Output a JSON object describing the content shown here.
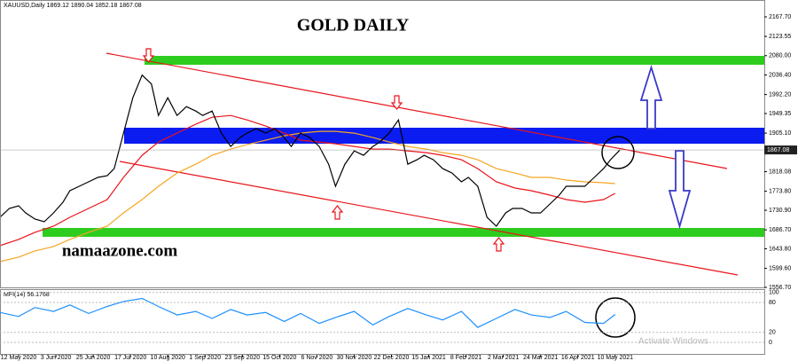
{
  "chart_data": {
    "type": "line",
    "header": "XAUUSD,Daily  1869.12 1890.04 1852.18 1867.08",
    "title": "GOLD DAILY",
    "watermark": "namaazone.com",
    "overlay": "Activate Windows",
    "last_price": 1867.08,
    "xlim": [
      0,
      328
    ],
    "ylim": [
      1556.7,
      2181.7
    ],
    "xticks": [
      {
        "value": 8,
        "label": "12 May 2020"
      },
      {
        "value": 24,
        "label": "3 Jun 2020"
      },
      {
        "value": 40,
        "label": "25 Jun 2020"
      },
      {
        "value": 56,
        "label": "17 Jul 2020"
      },
      {
        "value": 72,
        "label": "10 Aug 2020"
      },
      {
        "value": 88,
        "label": "1 Sep 2020"
      },
      {
        "value": 104,
        "label": "23 Sep 2020"
      },
      {
        "value": 120,
        "label": "15 Oct 2020"
      },
      {
        "value": 136,
        "label": "6 Nov 2020"
      },
      {
        "value": 152,
        "label": "30 Nov 2020"
      },
      {
        "value": 168,
        "label": "22 Dec 2020"
      },
      {
        "value": 184,
        "label": "15 Jan 2021"
      },
      {
        "value": 200,
        "label": "8 Feb 2021"
      },
      {
        "value": 216,
        "label": "2 Mar 2021"
      },
      {
        "value": 232,
        "label": "24 Mar 2021"
      },
      {
        "value": 248,
        "label": "16 Apr 2021"
      },
      {
        "value": 264,
        "label": "10 May 2021"
      }
    ],
    "yticks": [
      {
        "value": 2167.7,
        "label": "2167.70"
      },
      2123.55,
      {
        "value": 2080,
        "label": "2080.00"
      },
      {
        "value": 2036.4,
        "label": "2036.40"
      },
      {
        "value": 1992.2,
        "label": "1992.20"
      },
      1949.35,
      {
        "value": 1905.1,
        "label": "1905.10"
      },
      1818.08,
      {
        "value": 1773.8,
        "label": "1773.80"
      },
      {
        "value": 1730.9,
        "label": "1730.90"
      },
      {
        "value": 1686.7,
        "label": "1686.70"
      },
      {
        "value": 1643.8,
        "label": "1643.80"
      },
      {
        "value": 1599.6,
        "label": "1599.60"
      },
      {
        "value": 1556.7,
        "label": "1556.70"
      }
    ],
    "series": [
      {
        "color": "#000000",
        "x": [
          0,
          4,
          8,
          11,
          15,
          19,
          23,
          27,
          30,
          34,
          38,
          42,
          46,
          49,
          53,
          57,
          61,
          65,
          68,
          72,
          76,
          80,
          84,
          87,
          91,
          95,
          99,
          103,
          106,
          110,
          114,
          118,
          122,
          125,
          129,
          133,
          137,
          141,
          144,
          148,
          152,
          156,
          160,
          163,
          167,
          171,
          175,
          179,
          182,
          186,
          190,
          194,
          198,
          201,
          205,
          209,
          213,
          217,
          220,
          224,
          228,
          232,
          236,
          240,
          243,
          247,
          251,
          255,
          259,
          262,
          266
        ],
        "values": [
          1715,
          1735,
          1741,
          1725,
          1711,
          1705,
          1725,
          1749,
          1775,
          1785,
          1795,
          1805,
          1809,
          1825,
          1905,
          1985,
          2036,
          2016,
          1945,
          1985,
          1945,
          1965,
          1955,
          1945,
          1955,
          1905,
          1875,
          1895,
          1905,
          1915,
          1905,
          1915,
          1895,
          1875,
          1905,
          1895,
          1875,
          1835,
          1785,
          1835,
          1865,
          1855,
          1875,
          1885,
          1905,
          1935,
          1835,
          1845,
          1855,
          1845,
          1825,
          1815,
          1795,
          1805,
          1785,
          1715,
          1695,
          1725,
          1735,
          1735,
          1725,
          1725,
          1745,
          1765,
          1785,
          1785,
          1785,
          1805,
          1825,
          1845,
          1867
        ]
      },
      {
        "color": "#e8141c",
        "x": [
          0,
          8,
          15,
          23,
          30,
          38,
          46,
          53,
          61,
          68,
          76,
          84,
          91,
          99,
          106,
          114,
          122,
          129,
          137,
          144,
          152,
          160,
          167,
          175,
          183,
          190,
          198,
          205,
          213,
          221,
          228,
          236,
          243,
          251,
          259,
          264
        ],
        "values": [
          1651,
          1665,
          1681,
          1695,
          1715,
          1735,
          1755,
          1805,
          1855,
          1885,
          1905,
          1925,
          1941,
          1945,
          1935,
          1921,
          1905,
          1889,
          1885,
          1881,
          1875,
          1869,
          1869,
          1865,
          1861,
          1855,
          1845,
          1825,
          1795,
          1781,
          1775,
          1765,
          1755,
          1749,
          1755,
          1769
        ]
      },
      {
        "color": "#f5a623",
        "x": [
          0,
          8,
          15,
          23,
          30,
          38,
          46,
          53,
          61,
          68,
          76,
          84,
          91,
          99,
          106,
          114,
          122,
          129,
          137,
          144,
          152,
          160,
          167,
          175,
          183,
          190,
          198,
          205,
          213,
          221,
          228,
          236,
          243,
          251,
          259,
          264
        ],
        "values": [
          1615,
          1625,
          1639,
          1649,
          1665,
          1681,
          1695,
          1725,
          1755,
          1785,
          1815,
          1835,
          1855,
          1869,
          1879,
          1889,
          1899,
          1905,
          1909,
          1909,
          1905,
          1895,
          1885,
          1875,
          1869,
          1861,
          1855,
          1845,
          1825,
          1815,
          1805,
          1805,
          1799,
          1795,
          1793,
          1791
        ]
      }
    ],
    "indicator": {
      "name": "MFI(14) 56.1768",
      "ylim": [
        -25,
        105
      ],
      "yticks": [
        100,
        80,
        20,
        0
      ],
      "color": "#1e90ff",
      "x": [
        0,
        8,
        15,
        23,
        30,
        38,
        46,
        53,
        61,
        68,
        76,
        84,
        91,
        99,
        106,
        114,
        122,
        129,
        137,
        144,
        152,
        160,
        167,
        175,
        183,
        190,
        198,
        205,
        213,
        221,
        228,
        236,
        243,
        251,
        259,
        264
      ],
      "values": [
        60,
        52,
        70,
        62,
        75,
        58,
        72,
        82,
        88,
        72,
        55,
        62,
        48,
        66,
        55,
        60,
        42,
        58,
        38,
        50,
        62,
        35,
        52,
        68,
        55,
        45,
        62,
        30,
        48,
        66,
        55,
        50,
        62,
        40,
        38,
        56
      ]
    }
  }
}
